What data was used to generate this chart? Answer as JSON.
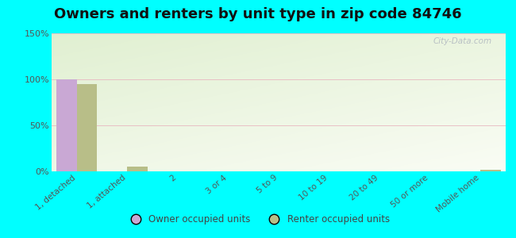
{
  "title": "Owners and renters by unit type in zip code 84746",
  "categories": [
    "1, detached",
    "1, attached",
    "2",
    "3 or 4",
    "5 to 9",
    "10 to 19",
    "20 to 49",
    "50 or more",
    "Mobile home"
  ],
  "owner_values": [
    100,
    0,
    0,
    0,
    0,
    0,
    0,
    0,
    0
  ],
  "renter_values": [
    95,
    5,
    0,
    0,
    0,
    0,
    0,
    0,
    2
  ],
  "owner_color": "#c9a8d4",
  "renter_color": "#b8be88",
  "ylim": [
    0,
    150
  ],
  "yticks": [
    0,
    50,
    100,
    150
  ],
  "ytick_labels": [
    "0%",
    "50%",
    "100%",
    "150%"
  ],
  "background_color": "#00ffff",
  "watermark": "City-Data.com",
  "legend_owner": "Owner occupied units",
  "legend_renter": "Renter occupied units",
  "title_fontsize": 13,
  "bar_width": 0.4,
  "grad_top": "#e8f2dc",
  "grad_bottom": "#f8faf0"
}
